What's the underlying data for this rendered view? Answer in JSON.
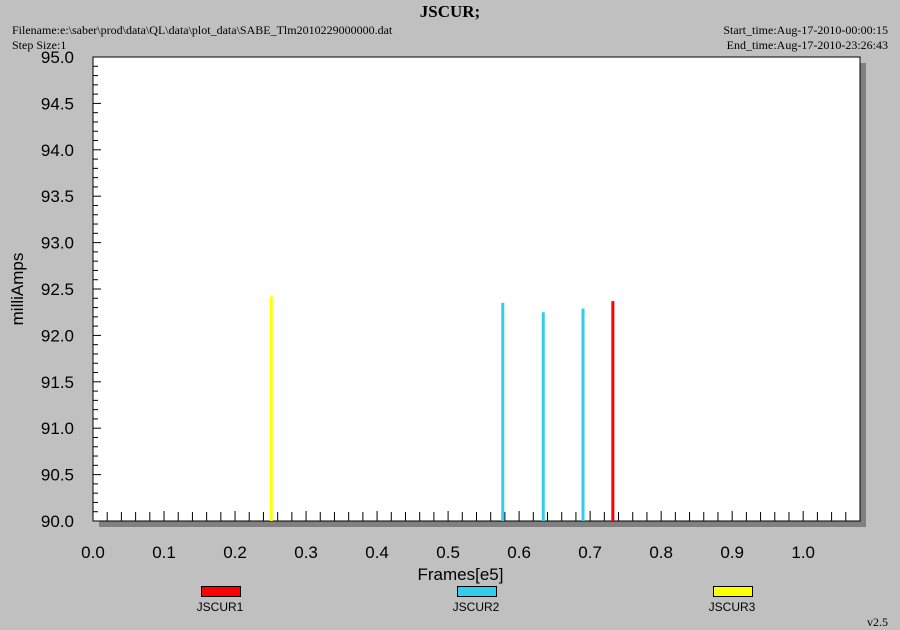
{
  "header": {
    "title": "JSCUR;",
    "filename": "Filename:e:\\saber\\prod\\data\\QL\\data\\plot_data\\SABE_Tlm2010229000000.dat",
    "step_size": "Step Size:1",
    "start_time": "Start_time:Aug-17-2010-00:00:15",
    "end_time": "End_time:Aug-17-2010-23:26:43"
  },
  "version": "v2.5",
  "chart_data": {
    "type": "line",
    "title": "JSCUR;",
    "xlabel": "Frames[e5]",
    "ylabel": "milliAmps",
    "xlim": [
      0.0,
      1.08
    ],
    "ylim": [
      90.0,
      95.0
    ],
    "x_ticks": [
      "0.0",
      "0.1",
      "0.2",
      "0.3",
      "0.4",
      "0.5",
      "0.6",
      "0.7",
      "0.8",
      "0.9",
      "1.0"
    ],
    "y_ticks": [
      "90.0",
      "90.5",
      "91.0",
      "91.5",
      "92.0",
      "92.5",
      "93.0",
      "93.5",
      "94.0",
      "94.5",
      "95.0"
    ],
    "legend_placement": "bottom",
    "series": [
      {
        "name": "JSCUR1",
        "color": "#ff0000",
        "spikes": [
          {
            "x": 0.732,
            "y": 92.37
          }
        ]
      },
      {
        "name": "JSCUR2",
        "color": "#33ccee",
        "spikes": [
          {
            "x": 0.577,
            "y": 92.35
          },
          {
            "x": 0.634,
            "y": 92.25
          },
          {
            "x": 0.69,
            "y": 92.29
          }
        ]
      },
      {
        "name": "JSCUR3",
        "color": "#ffff00",
        "spikes": [
          {
            "x": 0.251,
            "y": 92.42
          }
        ]
      }
    ]
  }
}
